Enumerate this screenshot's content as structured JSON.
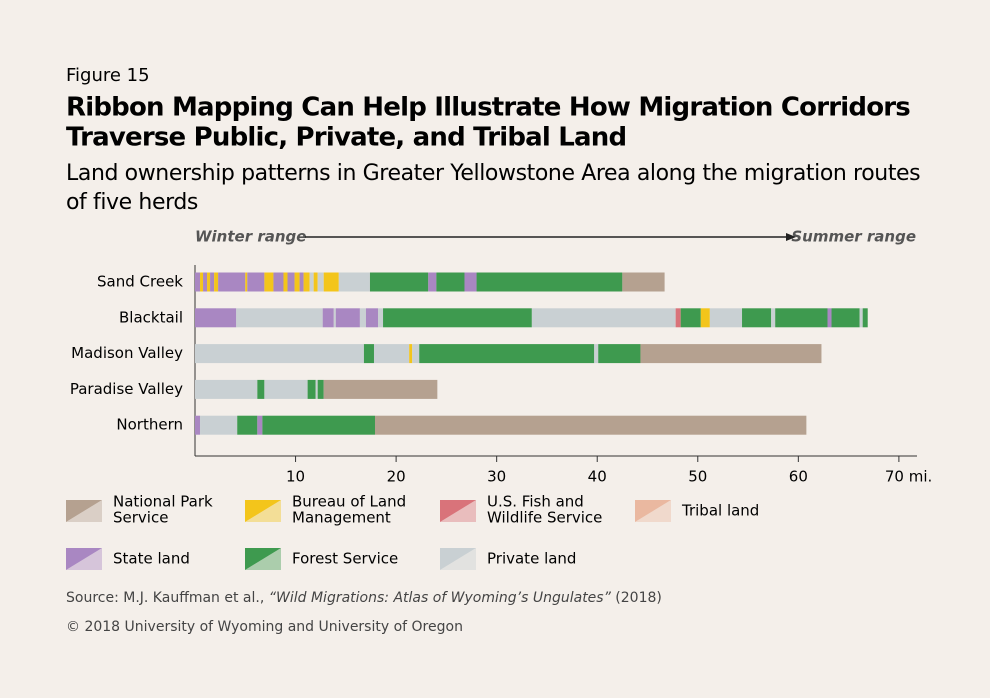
{
  "chart_data": {
    "type": "ribbon",
    "figure": "Figure 15",
    "title": [
      "Ribbon Mapping Can Help Illustrate How Migration Corridors",
      "Traverse Public, Private, and Tribal Land"
    ],
    "subtitle": [
      "Land ownership patterns in Greater Yellowstone Area along the migration routes",
      "of five herds"
    ],
    "start_label": "Winter range",
    "end_label": "Summer range",
    "xlim": [
      0,
      72
    ],
    "xticks": [
      10,
      20,
      30,
      40,
      50,
      60,
      {
        "value": 70,
        "label": "70 mi."
      }
    ],
    "rows": [
      {
        "name": "Sand Creek",
        "segments": [
          {
            "color": "#a987c2",
            "miles": 0.5
          },
          {
            "color": "#f3c51b",
            "miles": 0.3
          },
          {
            "color": "#a987c2",
            "miles": 0.4
          },
          {
            "color": "#f3c51b",
            "miles": 0.3
          },
          {
            "color": "#a987c2",
            "miles": 0.4
          },
          {
            "color": "#f3c51b",
            "miles": 0.4
          },
          {
            "color": "#a987c2",
            "miles": 2.7
          },
          {
            "color": "#f3c51b",
            "miles": 0.2
          },
          {
            "color": "#a987c2",
            "miles": 1.7
          },
          {
            "color": "#f3c51b",
            "miles": 0.9
          },
          {
            "color": "#a987c2",
            "miles": 1.0
          },
          {
            "color": "#f3c51b",
            "miles": 0.4
          },
          {
            "color": "#a987c2",
            "miles": 0.7
          },
          {
            "color": "#f3c51b",
            "miles": 0.5
          },
          {
            "color": "#a987c2",
            "miles": 0.4
          },
          {
            "color": "#f3c51b",
            "miles": 0.6
          },
          {
            "color": "#c9d0d3",
            "miles": 0.4
          },
          {
            "color": "#f3c51b",
            "miles": 0.4
          },
          {
            "color": "#c9d0d3",
            "miles": 0.6
          },
          {
            "color": "#f3c51b",
            "miles": 1.5
          },
          {
            "color": "#c9d0d3",
            "miles": 3.1
          },
          {
            "color": "#3e9a4f",
            "miles": 5.8
          },
          {
            "color": "#a987c2",
            "miles": 0.8
          },
          {
            "color": "#3e9a4f",
            "miles": 2.8
          },
          {
            "color": "#a987c2",
            "miles": 1.2
          },
          {
            "color": "#3e9a4f",
            "miles": 14.5
          },
          {
            "color": "#b5a190",
            "miles": 4.2
          }
        ]
      },
      {
        "name": "Blacktail",
        "segments": [
          {
            "color": "#a987c2",
            "miles": 4.1
          },
          {
            "color": "#c9d0d3",
            "miles": 8.6
          },
          {
            "color": "#a987c2",
            "miles": 1.1
          },
          {
            "color": "#c9d0d3",
            "miles": 0.2
          },
          {
            "color": "#a987c2",
            "miles": 2.4
          },
          {
            "color": "#c9d0d3",
            "miles": 0.6
          },
          {
            "color": "#a987c2",
            "miles": 1.2
          },
          {
            "color": "#c9d0d3",
            "miles": 0.5
          },
          {
            "color": "#3e9a4f",
            "miles": 14.8
          },
          {
            "color": "#c9d0d3",
            "miles": 14.3
          },
          {
            "color": "#d9737a",
            "miles": 0.5
          },
          {
            "color": "#3e9a4f",
            "miles": 2.0
          },
          {
            "color": "#f3c51b",
            "miles": 0.9
          },
          {
            "color": "#c9d0d3",
            "miles": 3.2
          },
          {
            "color": "#3e9a4f",
            "miles": 2.9
          },
          {
            "color": "#c9d0d3",
            "miles": 0.4
          },
          {
            "color": "#3e9a4f",
            "miles": 5.2
          },
          {
            "color": "#a987c2",
            "miles": 0.4
          },
          {
            "color": "#3e9a4f",
            "miles": 2.8
          },
          {
            "color": "#c9d0d3",
            "miles": 0.3
          },
          {
            "color": "#3e9a4f",
            "miles": 0.5
          }
        ]
      },
      {
        "name": "Madison Valley",
        "segments": [
          {
            "color": "#c9d0d3",
            "miles": 16.8
          },
          {
            "color": "#3e9a4f",
            "miles": 1.0
          },
          {
            "color": "#c9d0d3",
            "miles": 3.5
          },
          {
            "color": "#f3c51b",
            "miles": 0.3
          },
          {
            "color": "#c9d0d3",
            "miles": 0.7
          },
          {
            "color": "#3e9a4f",
            "miles": 17.4
          },
          {
            "color": "#c9d0d3",
            "miles": 0.4
          },
          {
            "color": "#3e9a4f",
            "miles": 4.2
          },
          {
            "color": "#b5a190",
            "miles": 18.0
          }
        ]
      },
      {
        "name": "Paradise Valley",
        "segments": [
          {
            "color": "#c9d0d3",
            "miles": 6.2
          },
          {
            "color": "#3e9a4f",
            "miles": 0.7
          },
          {
            "color": "#c9d0d3",
            "miles": 4.3
          },
          {
            "color": "#3e9a4f",
            "miles": 0.8
          },
          {
            "color": "#c9d0d3",
            "miles": 0.2
          },
          {
            "color": "#3e9a4f",
            "miles": 0.6
          },
          {
            "color": "#b5a190",
            "miles": 11.3
          }
        ]
      },
      {
        "name": "Northern",
        "segments": [
          {
            "color": "#a987c2",
            "miles": 0.5
          },
          {
            "color": "#c9d0d3",
            "miles": 3.7
          },
          {
            "color": "#3e9a4f",
            "miles": 2.0
          },
          {
            "color": "#a987c2",
            "miles": 0.5
          },
          {
            "color": "#3e9a4f",
            "miles": 11.2
          },
          {
            "color": "#b5a190",
            "miles": 42.9
          }
        ]
      }
    ],
    "legend": [
      {
        "name": [
          "National Park",
          "Service"
        ],
        "color": "#b5a190"
      },
      {
        "name": [
          "Bureau of Land",
          "Management"
        ],
        "color": "#f3c51b"
      },
      {
        "name": [
          "U.S. Fish and",
          "Wildlife Service"
        ],
        "color": "#d9737a"
      },
      {
        "name": [
          "Tribal land"
        ],
        "color": "#eab8a0"
      },
      {
        "name": [
          "State land"
        ],
        "color": "#a987c2"
      },
      {
        "name": [
          "Forest Service"
        ],
        "color": "#3e9a4f"
      },
      {
        "name": [
          "Private land"
        ],
        "color": "#c9d0d3"
      }
    ],
    "source": {
      "prefix": "Source: M.J. Kauffman et al.,",
      "work": "“Wild Migrations: Atlas of Wyoming’s Ungulates”",
      "year": "(2018)"
    },
    "copyright": "© 2018 University of Wyoming and University of Oregon"
  }
}
